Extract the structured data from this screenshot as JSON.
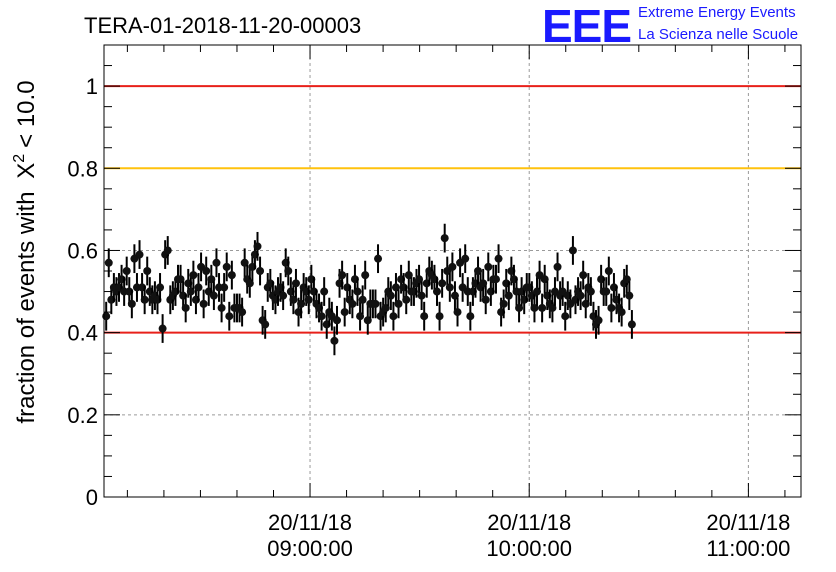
{
  "chart_data": {
    "type": "scatter",
    "title": "TERA-01-2018-11-20-00003",
    "ylabel": "fraction of events with",
    "ylabel_symbol": "X",
    "ylabel_sup": "2",
    "ylabel_tail": "< 10.0",
    "xlabel": "",
    "xlim_hours": [
      8.06,
      11.24
    ],
    "ylim": [
      0,
      1.1
    ],
    "yticks": [
      {
        "value": 0,
        "label": "0"
      },
      {
        "value": 0.2,
        "label": "0.2"
      },
      {
        "value": 0.4,
        "label": "0.4"
      },
      {
        "value": 0.6,
        "label": "0.6"
      },
      {
        "value": 0.8,
        "label": "0.8"
      },
      {
        "value": 1,
        "label": "1"
      }
    ],
    "xticks": [
      {
        "hour": 9,
        "date": "20/11/18",
        "time": "09:00:00"
      },
      {
        "hour": 10,
        "date": "20/11/18",
        "time": "10:00:00"
      },
      {
        "hour": 11,
        "date": "20/11/18",
        "time": "11:00:00"
      }
    ],
    "reference_lines": [
      {
        "name": "upper-limit",
        "value": 1.0,
        "color": "#e8201a"
      },
      {
        "name": "warning-level",
        "value": 0.8,
        "color": "#ffc20e"
      },
      {
        "name": "lower-limit",
        "value": 0.4,
        "color": "#e8201a"
      }
    ],
    "grid": true,
    "series": [
      {
        "name": "fraction",
        "x_start_hour": 8.07,
        "x_step_hour": 0.0117,
        "error": 0.035,
        "values": [
          0.44,
          0.57,
          0.48,
          0.51,
          0.5,
          0.51,
          0.53,
          0.5,
          0.55,
          0.5,
          0.47,
          0.58,
          0.51,
          0.59,
          0.51,
          0.48,
          0.55,
          0.5,
          0.48,
          0.49,
          0.48,
          0.51,
          0.41,
          0.59,
          0.6,
          0.48,
          0.49,
          0.5,
          0.53,
          0.53,
          0.49,
          0.46,
          0.52,
          0.5,
          0.54,
          0.48,
          0.51,
          0.56,
          0.47,
          0.55,
          0.5,
          0.53,
          0.49,
          0.57,
          0.51,
          0.46,
          0.51,
          0.56,
          0.44,
          0.54,
          0.46,
          0.46,
          0.46,
          0.45,
          0.57,
          0.53,
          0.52,
          0.56,
          0.59,
          0.61,
          0.55,
          0.43,
          0.42,
          0.51,
          0.52,
          0.49,
          0.48,
          0.5,
          0.51,
          0.49,
          0.57,
          0.55,
          0.5,
          0.48,
          0.52,
          0.45,
          0.47,
          0.51,
          0.5,
          0.48,
          0.53,
          0.5,
          0.47,
          0.46,
          0.44,
          0.5,
          0.42,
          0.45,
          0.44,
          0.38,
          0.43,
          0.52,
          0.54,
          0.45,
          0.51,
          0.48,
          0.47,
          0.53,
          0.5,
          0.44,
          0.48,
          0.54,
          0.43,
          0.47,
          0.47,
          0.47,
          0.58,
          0.44,
          0.45,
          0.46,
          0.5,
          0.49,
          0.44,
          0.51,
          0.47,
          0.53,
          0.51,
          0.48,
          0.54,
          0.5,
          0.5,
          0.52,
          0.53,
          0.49,
          0.44,
          0.52,
          0.55,
          0.54,
          0.53,
          0.5,
          0.44,
          0.52,
          0.63,
          0.55,
          0.51,
          0.56,
          0.49,
          0.45,
          0.57,
          0.51,
          0.58,
          0.5,
          0.44,
          0.5,
          0.52,
          0.55,
          0.51,
          0.52,
          0.48,
          0.56,
          0.5,
          0.53,
          0.53,
          0.58,
          0.45,
          0.47,
          0.52,
          0.49,
          0.55,
          0.53,
          0.5,
          0.46,
          0.5,
          0.48,
          0.51,
          0.51,
          0.49,
          0.46,
          0.5,
          0.54,
          0.46,
          0.53,
          0.49,
          0.47,
          0.46,
          0.5,
          0.56,
          0.49,
          0.5,
          0.44,
          0.49,
          0.47,
          0.6,
          0.48,
          0.5,
          0.49,
          0.54,
          0.47,
          0.51,
          0.5,
          0.44,
          0.42,
          0.43,
          0.53,
          0.5,
          0.5,
          0.55,
          0.46,
          0.51,
          0.48,
          0.46,
          0.45,
          0.52,
          0.53,
          0.49,
          0.42
        ]
      }
    ]
  },
  "brand": {
    "logo": "EEE",
    "line1": "Extreme Energy Events",
    "line2": "La Scienza nelle Scuole",
    "color": "#1a1aff"
  }
}
